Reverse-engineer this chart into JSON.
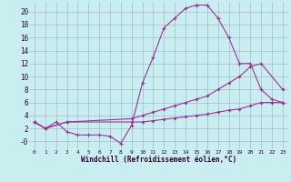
{
  "background_color": "#c8eef0",
  "grid_color": "#9999bb",
  "line_color": "#993399",
  "xlabel": "Windchill (Refroidissement éolien,°C)",
  "xlim": [
    -0.5,
    23.5
  ],
  "ylim": [
    -1.2,
    21.5
  ],
  "xticks": [
    0,
    1,
    2,
    3,
    4,
    5,
    6,
    7,
    8,
    9,
    10,
    11,
    12,
    13,
    14,
    15,
    16,
    17,
    18,
    19,
    20,
    21,
    22,
    23
  ],
  "yticks": [
    0,
    2,
    4,
    6,
    8,
    10,
    12,
    14,
    16,
    18,
    20
  ],
  "ytick_labels": [
    "-0",
    "2",
    "4",
    "6",
    "8",
    "10",
    "12",
    "14",
    "16",
    "18",
    "20"
  ],
  "line1_x": [
    0,
    1,
    2,
    3,
    4,
    5,
    6,
    7,
    8,
    9,
    10,
    11,
    12,
    13,
    14,
    15,
    16,
    17,
    18,
    19,
    20,
    21,
    22,
    23
  ],
  "line1_y": [
    3.0,
    2.0,
    3.0,
    1.5,
    1.0,
    1.0,
    1.0,
    0.8,
    -0.3,
    2.5,
    9.0,
    13.0,
    17.5,
    19.0,
    20.5,
    21.0,
    21.0,
    19.0,
    16.0,
    12.0,
    12.0,
    8.0,
    6.5,
    6.0
  ],
  "line2_x": [
    0,
    1,
    3,
    9,
    10,
    11,
    12,
    13,
    14,
    15,
    16,
    17,
    18,
    19,
    20,
    21,
    23
  ],
  "line2_y": [
    3.0,
    2.0,
    3.0,
    3.5,
    4.0,
    4.5,
    5.0,
    5.5,
    6.0,
    6.5,
    7.0,
    8.0,
    9.0,
    10.0,
    11.5,
    12.0,
    8.0
  ],
  "line3_x": [
    0,
    1,
    3,
    9,
    10,
    11,
    12,
    13,
    14,
    15,
    16,
    17,
    18,
    19,
    20,
    21,
    22,
    23
  ],
  "line3_y": [
    3.0,
    2.0,
    3.0,
    3.0,
    3.0,
    3.2,
    3.4,
    3.6,
    3.8,
    4.0,
    4.2,
    4.5,
    4.8,
    5.0,
    5.5,
    6.0,
    6.0,
    6.0
  ]
}
